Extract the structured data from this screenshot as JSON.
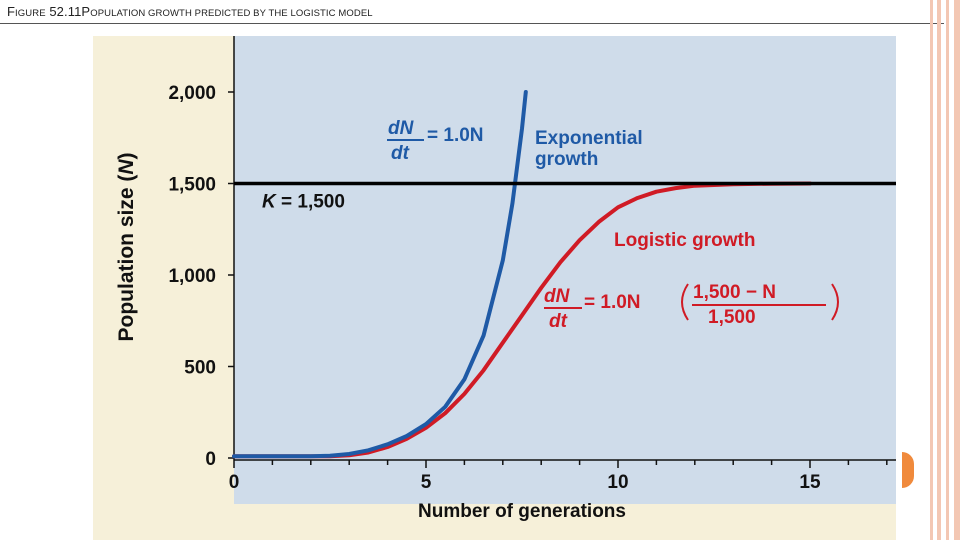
{
  "slide": {
    "title_fig_prefix": "F",
    "title_fig_rest": "IGURE",
    "title_fig_number": " 52.11",
    "title_pop_prefix": "P",
    "title_pop_rest": "OPULATION GROWTH PREDICTED BY THE LOGISTIC MODEL"
  },
  "colors": {
    "plot_background": "#cfdcea",
    "panel_background": "#f6f0d9",
    "exponential": "#1f5aa6",
    "logistic": "#d01b25",
    "carrying_capacity_line": "#000000",
    "accent_tab": "#f08a3c"
  },
  "chart_data": {
    "type": "line",
    "xlabel": "Number of generations",
    "ylabel_text": "Population size (",
    "ylabel_var": "N",
    "ylabel_close": ")",
    "xlim": [
      0,
      17
    ],
    "ylim": [
      0,
      2150
    ],
    "x_ticks": [
      0,
      5,
      10,
      15
    ],
    "x_tick_labels": [
      "0",
      "5",
      "10",
      "15"
    ],
    "y_ticks": [
      0,
      500,
      1000,
      1500,
      2000
    ],
    "y_tick_labels": [
      "0",
      "500",
      "1,000",
      "1,500",
      "2,000"
    ],
    "carrying_capacity": {
      "value": 1500,
      "label_var": "K",
      "label_rest": " = 1,500"
    },
    "series": [
      {
        "name_line1": "Exponential",
        "name_line2": "growth",
        "x": [
          0,
          1,
          2,
          2.5,
          3,
          3.5,
          4,
          4.5,
          5,
          5.5,
          6,
          6.5,
          7,
          7.25,
          7.5,
          7.6
        ],
        "y": [
          10,
          10,
          10,
          12,
          22,
          42,
          75,
          120,
          185,
          280,
          430,
          670,
          1080,
          1390,
          1800,
          2000
        ],
        "equation": {
          "numerator": "dN",
          "denominator": "dt",
          "rhs": "= 1.0N"
        }
      },
      {
        "name": "Logistic growth",
        "x": [
          0,
          1,
          2,
          2.5,
          3,
          3.5,
          4,
          4.5,
          5,
          5.5,
          6,
          6.5,
          7,
          7.5,
          8,
          8.5,
          9,
          9.5,
          10,
          10.5,
          11,
          11.5,
          12,
          13,
          14,
          15
        ],
        "y": [
          10,
          10,
          10,
          10,
          15,
          30,
          60,
          105,
          165,
          245,
          350,
          480,
          630,
          780,
          930,
          1070,
          1190,
          1290,
          1370,
          1420,
          1455,
          1475,
          1488,
          1496,
          1499,
          1500
        ],
        "equation": {
          "numerator": "dN",
          "denominator": "dt",
          "rhs": "= 1.0N",
          "frac_numerator": "1,500 − N",
          "frac_denominator": "1,500"
        }
      }
    ]
  }
}
